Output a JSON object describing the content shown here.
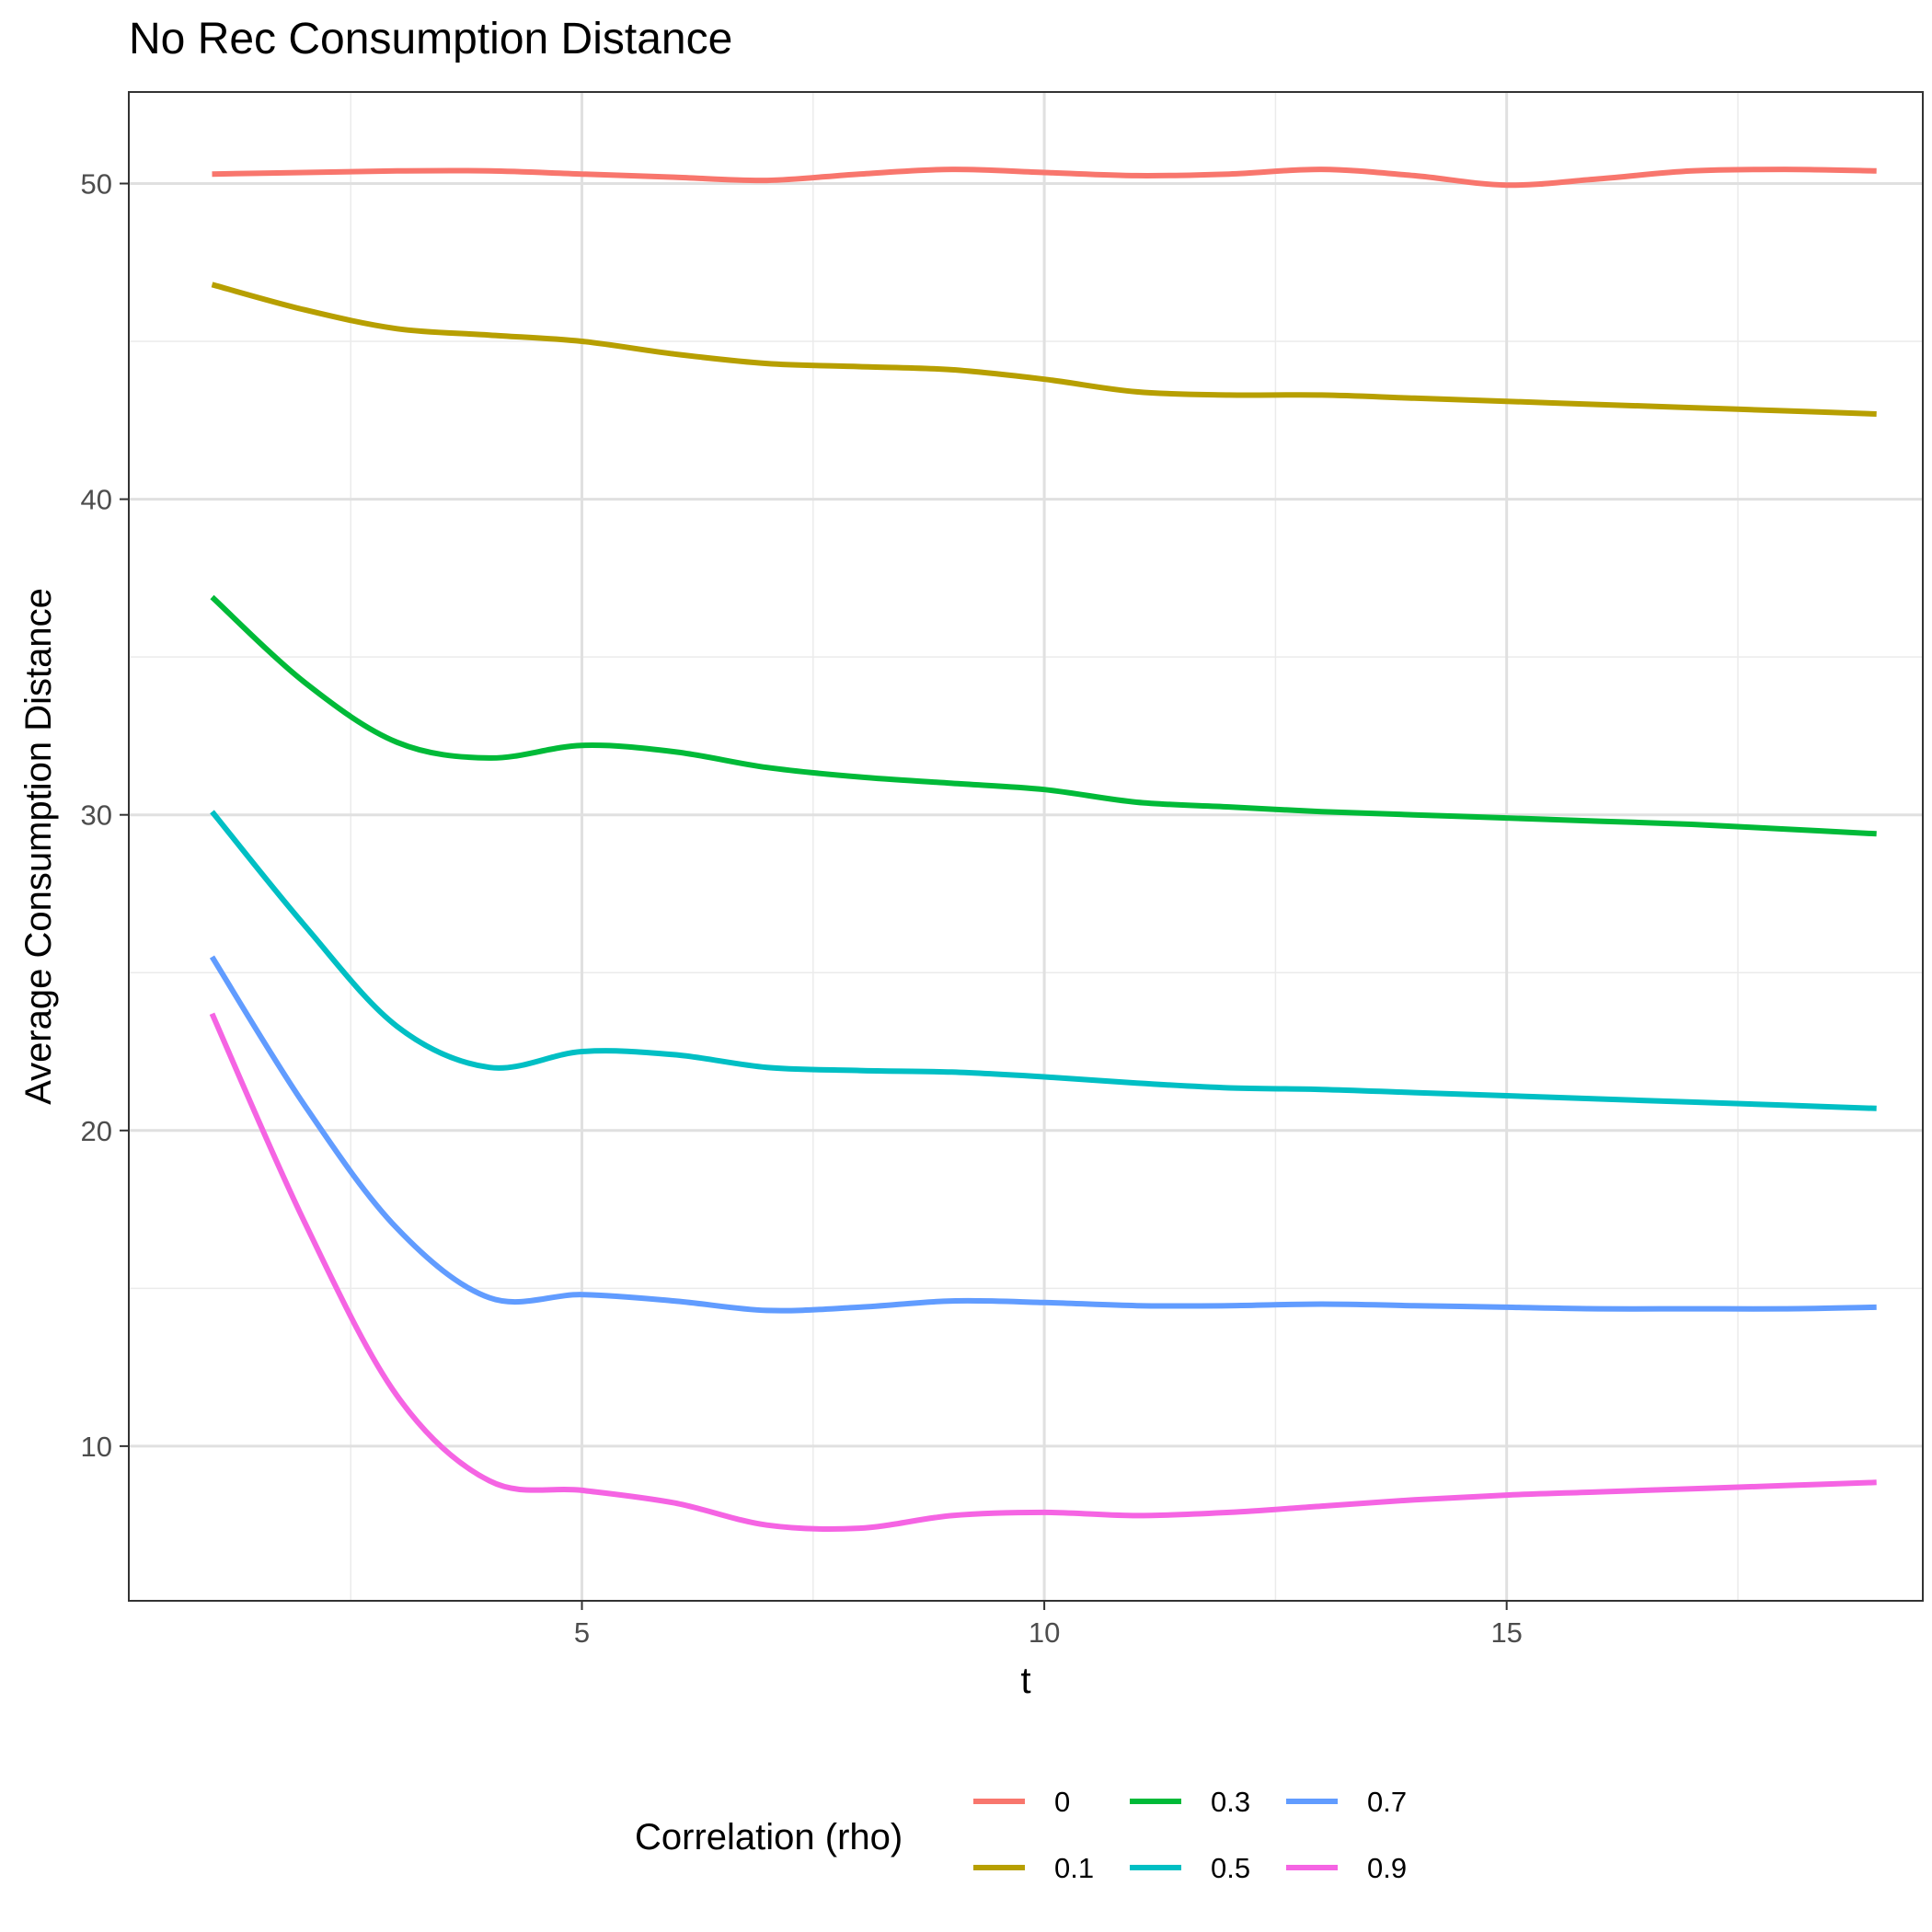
{
  "chart_data": {
    "type": "line",
    "title": "No Rec Consumption Distance",
    "xlabel": "t",
    "ylabel": "Average Consumption Distance",
    "xlim": [
      0.1,
      19.5
    ],
    "ylim": [
      5.1,
      52.9
    ],
    "x_ticks": [
      5,
      10,
      15
    ],
    "x_tick_labels": [
      "5",
      "10",
      "15"
    ],
    "y_ticks": [
      10,
      20,
      30,
      40,
      50
    ],
    "y_tick_labels": [
      "10",
      "20",
      "30",
      "40",
      "50"
    ],
    "x_minor": [
      2.5,
      7.5,
      12.5,
      17.5
    ],
    "y_minor": [
      15,
      25,
      35,
      45
    ],
    "grid": true,
    "legend": {
      "title": "Correlation (rho)",
      "position": "bottom"
    },
    "x": [
      1,
      2,
      3,
      4,
      5,
      6,
      7,
      8,
      9,
      10,
      11,
      12,
      13,
      14,
      15,
      16,
      17,
      18,
      19
    ],
    "series": [
      {
        "name": "0",
        "color": "#F8766D",
        "values": [
          50.3,
          50.35,
          50.4,
          50.4,
          50.3,
          50.2,
          50.1,
          50.3,
          50.45,
          50.35,
          50.25,
          50.3,
          50.45,
          50.25,
          49.95,
          50.15,
          50.4,
          50.45,
          50.4
        ]
      },
      {
        "name": "0.1",
        "color": "#B79F00",
        "values": [
          46.8,
          46.0,
          45.4,
          45.2,
          45.0,
          44.6,
          44.3,
          44.2,
          44.1,
          43.8,
          43.4,
          43.3,
          43.3,
          43.2,
          43.1,
          43.0,
          42.9,
          42.8,
          42.7
        ]
      },
      {
        "name": "0.3",
        "color": "#00BA38",
        "values": [
          36.9,
          34.2,
          32.3,
          31.8,
          32.2,
          32.0,
          31.5,
          31.2,
          31.0,
          30.8,
          30.4,
          30.25,
          30.1,
          30.0,
          29.9,
          29.8,
          29.7,
          29.55,
          29.4
        ]
      },
      {
        "name": "0.5",
        "color": "#00BFC4",
        "values": [
          30.1,
          26.5,
          23.3,
          22.0,
          22.5,
          22.4,
          22.0,
          21.9,
          21.85,
          21.7,
          21.5,
          21.35,
          21.3,
          21.2,
          21.1,
          21.0,
          20.9,
          20.8,
          20.7
        ]
      },
      {
        "name": "0.7",
        "color": "#619CFF",
        "values": [
          25.5,
          20.8,
          16.9,
          14.7,
          14.8,
          14.6,
          14.3,
          14.4,
          14.6,
          14.55,
          14.45,
          14.45,
          14.5,
          14.45,
          14.4,
          14.35,
          14.35,
          14.35,
          14.4
        ]
      },
      {
        "name": "0.9",
        "color": "#F564E3",
        "values": [
          23.7,
          17.1,
          11.6,
          8.9,
          8.6,
          8.2,
          7.5,
          7.4,
          7.8,
          7.9,
          7.8,
          7.9,
          8.1,
          8.3,
          8.45,
          8.55,
          8.65,
          8.75,
          8.85
        ]
      }
    ]
  }
}
